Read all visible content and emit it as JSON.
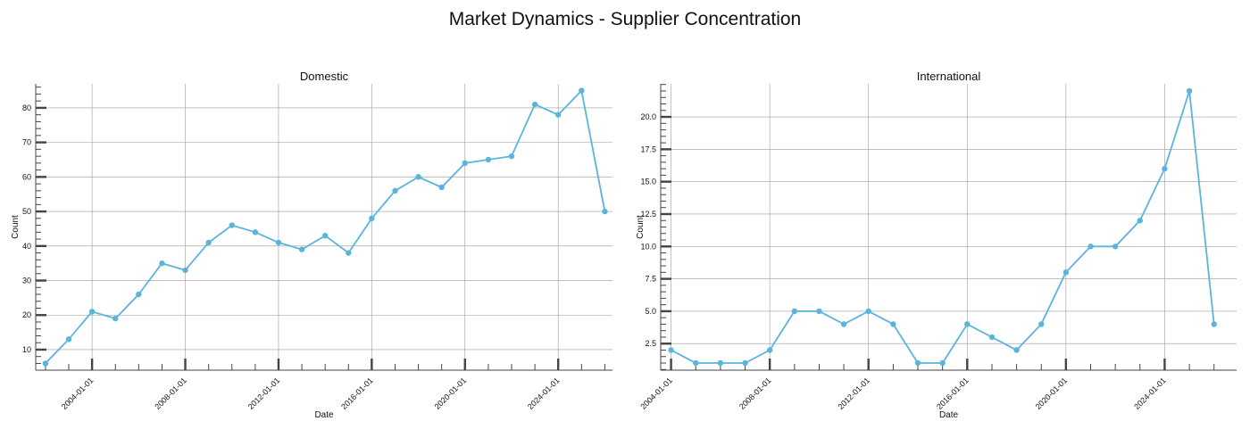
{
  "suptitle": "Market Dynamics - Supplier Concentration",
  "colors": {
    "line": "#5ab4dc",
    "grid": "#9a9a9a",
    "axis": "#444444"
  },
  "chart_data": [
    {
      "type": "line",
      "title": "Domestic",
      "xlabel": "Date",
      "ylabel": "Count",
      "x": [
        "2002-01-01",
        "2003-01-01",
        "2004-01-01",
        "2005-01-01",
        "2006-01-01",
        "2007-01-01",
        "2008-01-01",
        "2009-01-01",
        "2010-01-01",
        "2011-01-01",
        "2012-01-01",
        "2013-01-01",
        "2014-01-01",
        "2015-01-01",
        "2016-01-01",
        "2017-01-01",
        "2018-01-01",
        "2019-01-01",
        "2020-01-01",
        "2021-01-01",
        "2022-01-01",
        "2023-01-01",
        "2024-01-01",
        "2025-01-01",
        "2026-01-01"
      ],
      "values": [
        6,
        13,
        21,
        19,
        26,
        35,
        33,
        41,
        46,
        44,
        41,
        39,
        43,
        38,
        48,
        56,
        60,
        57,
        64,
        65,
        66,
        81,
        78,
        85,
        50
      ],
      "xticks": [
        "2004-01-01",
        "2008-01-01",
        "2012-01-01",
        "2016-01-01",
        "2020-01-01",
        "2024-01-01"
      ],
      "yticks": [
        10,
        20,
        30,
        40,
        50,
        60,
        70,
        80
      ],
      "ylim": [
        4.05,
        86.95
      ],
      "xlim": [
        "2001-08-01",
        "2026-05-01"
      ],
      "grid": true
    },
    {
      "type": "line",
      "title": "International",
      "xlabel": "Date",
      "ylabel": "Count",
      "x": [
        "2004-01-01",
        "2005-01-01",
        "2006-01-01",
        "2007-01-01",
        "2008-01-01",
        "2009-01-01",
        "2010-01-01",
        "2011-01-01",
        "2012-01-01",
        "2013-01-01",
        "2014-01-01",
        "2015-01-01",
        "2016-01-01",
        "2017-01-01",
        "2018-01-01",
        "2019-01-01",
        "2020-01-01",
        "2021-01-01",
        "2022-01-01",
        "2023-01-01",
        "2024-01-01",
        "2025-01-01",
        "2026-01-01"
      ],
      "values": [
        2,
        1,
        1,
        1,
        2,
        5,
        5,
        4,
        5,
        4,
        1,
        1,
        4,
        3,
        2,
        4,
        8,
        10,
        10,
        12,
        16,
        22,
        4
      ],
      "xticks": [
        "2004-01-01",
        "2008-01-01",
        "2012-01-01",
        "2016-01-01",
        "2020-01-01",
        "2024-01-01"
      ],
      "yticks": [
        2.5,
        5.0,
        7.5,
        10.0,
        12.5,
        15.0,
        17.5,
        20.0
      ],
      "ylim": [
        0.45,
        22.55
      ],
      "xlim": [
        "2003-08-01",
        "2026-12-01"
      ],
      "grid": true
    }
  ]
}
